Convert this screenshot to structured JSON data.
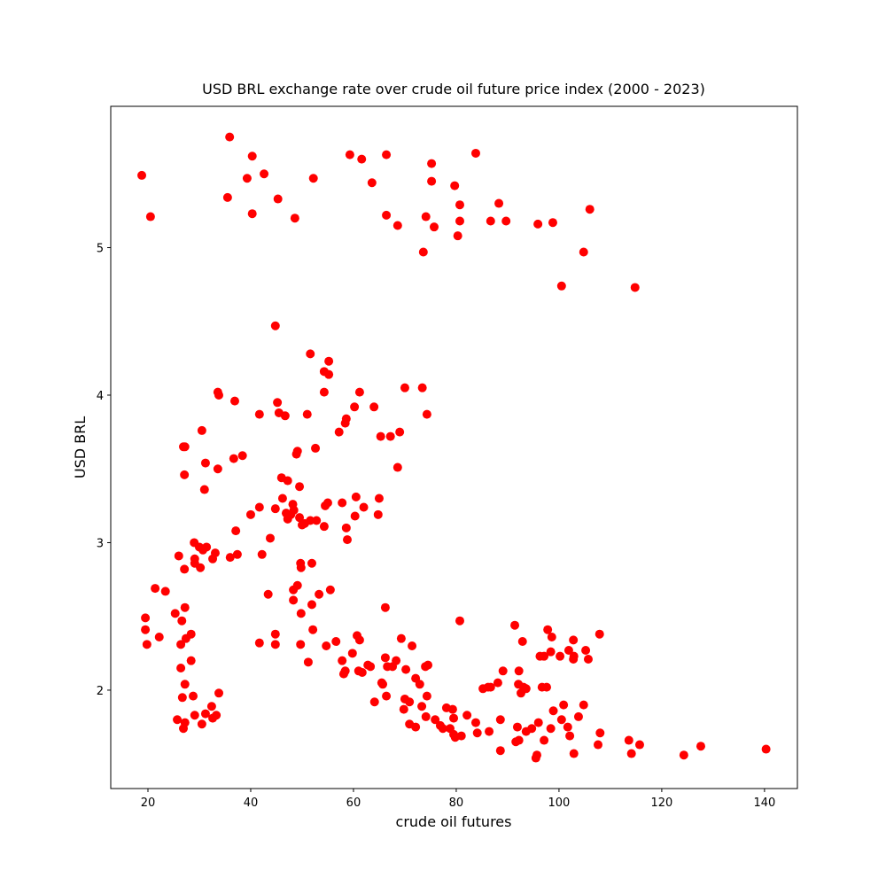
{
  "chart_data": {
    "type": "scatter",
    "title": "USD BRL exchange rate over crude oil future price index (2000 - 2023)",
    "x_label": "crude oil futures",
    "y_label": "USD BRL",
    "color": "#ff0000",
    "xlim": [
      12.76,
      146.4
    ],
    "ylim": [
      1.333,
      5.958
    ],
    "xticks": [
      20,
      40,
      60,
      80,
      100,
      120,
      140
    ],
    "yticks": [
      2,
      3,
      4,
      5
    ],
    "x": [
      18.8,
      20.5,
      35.9,
      35.5,
      40.3,
      39.3,
      42.6,
      40.3,
      45.3,
      48.6,
      52.2,
      59.3,
      61.6,
      63.6,
      66.4,
      66.4,
      68.6,
      75.2,
      75.2,
      74.1,
      75.7,
      73.6,
      79.7,
      80.7,
      80.7,
      80.3,
      83.8,
      86.7,
      88.3,
      89.7,
      95.9,
      98.8,
      106.0,
      104.8,
      100.5,
      114.8,
      44.8,
      51.6,
      55.2,
      54.3,
      55.2,
      54.3,
      33.6,
      33.8,
      36.9,
      41.7,
      45.2,
      45.5,
      46.7,
      51.0,
      58.6,
      58.4,
      60.2,
      61.2,
      64.0,
      70.0,
      73.4,
      74.3,
      57.2,
      65.3,
      67.2,
      69.0,
      68.6,
      30.5,
      26.9,
      27.2,
      31.2,
      33.6,
      36.7,
      38.4,
      27.1,
      31.0,
      49.1,
      48.9,
      52.6,
      46.0,
      47.2,
      49.5,
      46.2,
      60.5,
      65.0,
      54.5,
      55.0,
      57.8,
      62.0,
      41.7,
      44.8,
      40.0,
      48.2,
      48.4,
      46.9,
      47.8,
      47.2,
      49.5,
      51.6,
      52.8,
      50.5,
      50.0,
      60.3,
      64.8,
      54.3,
      58.6,
      37.1,
      58.8,
      43.8,
      29.0,
      30.0,
      31.4,
      30.7,
      33.1,
      32.6,
      29.1,
      29.1,
      30.2,
      26.0,
      27.1,
      36.0,
      37.4,
      42.2,
      49.7,
      49.8,
      51.9,
      21.4,
      23.4,
      43.4,
      49.1,
      48.3,
      53.3,
      55.5,
      48.3,
      51.9,
      66.2,
      27.2,
      25.3,
      49.8,
      19.5,
      26.6,
      80.7,
      19.5,
      52.1,
      91.4,
      97.8,
      107.9,
      22.2,
      28.4,
      44.8,
      60.7,
      27.4,
      61.2,
      56.6,
      69.3,
      98.6,
      102.8,
      92.9,
      19.8,
      26.4,
      41.7,
      44.8,
      49.7,
      54.7,
      71.4,
      101.9,
      105.2,
      98.4,
      96.3,
      97.1,
      100.2,
      102.9,
      102.8,
      105.7,
      66.2,
      68.3,
      28.4,
      57.8,
      59.8,
      51.2,
      66.6,
      67.6,
      74.5,
      74.0,
      62.8,
      63.3,
      61.0,
      61.7,
      58.4,
      58.1,
      26.4,
      70.2,
      89.1,
      92.2,
      72.1,
      27.2,
      65.5,
      65.7,
      72.9,
      92.1,
      93.1,
      96.7,
      97.6,
      86.2,
      86.7,
      85.2,
      93.6,
      92.6,
      88.1,
      33.8,
      66.4,
      28.8,
      26.7,
      74.3,
      70.0,
      70.9,
      64.1,
      69.8,
      104.8,
      100.9,
      32.4,
      73.3,
      78.1,
      79.3,
      98.9,
      31.2,
      33.3,
      29.1,
      32.6,
      25.7,
      82.1,
      74.1,
      75.9,
      103.8,
      79.5,
      100.5,
      88.6,
      96.0,
      27.2,
      83.8,
      70.9,
      76.9,
      77.4,
      72.1,
      30.5,
      26.9,
      78.8,
      86.4,
      91.9,
      101.7,
      98.4,
      93.6,
      94.7,
      84.1,
      108.0,
      79.5,
      79.8,
      81.0,
      102.1,
      97.1,
      92.2,
      91.6,
      113.6,
      115.7,
      107.6,
      88.6,
      102.9,
      114.1,
      95.7,
      95.5,
      124.3,
      127.6,
      140.3
    ],
    "values": [
      5.49,
      5.21,
      5.75,
      5.34,
      5.62,
      5.47,
      5.5,
      5.23,
      5.33,
      5.2,
      5.47,
      5.63,
      5.6,
      5.44,
      5.63,
      5.22,
      5.15,
      5.57,
      5.45,
      5.21,
      5.14,
      4.97,
      5.42,
      5.29,
      5.18,
      5.08,
      5.64,
      5.18,
      5.3,
      5.18,
      5.16,
      5.17,
      5.26,
      4.97,
      4.74,
      4.73,
      4.47,
      4.28,
      4.23,
      4.16,
      4.14,
      4.02,
      4.02,
      4.0,
      3.96,
      3.87,
      3.95,
      3.88,
      3.86,
      3.87,
      3.84,
      3.81,
      3.92,
      4.02,
      3.92,
      4.05,
      4.05,
      3.87,
      3.75,
      3.72,
      3.72,
      3.75,
      3.51,
      3.76,
      3.65,
      3.65,
      3.54,
      3.5,
      3.57,
      3.59,
      3.46,
      3.36,
      3.62,
      3.6,
      3.64,
      3.44,
      3.42,
      3.38,
      3.3,
      3.31,
      3.3,
      3.25,
      3.27,
      3.27,
      3.24,
      3.24,
      3.23,
      3.19,
      3.26,
      3.22,
      3.2,
      3.19,
      3.16,
      3.17,
      3.15,
      3.15,
      3.13,
      3.12,
      3.18,
      3.19,
      3.11,
      3.1,
      3.08,
      3.02,
      3.03,
      3.0,
      2.97,
      2.97,
      2.95,
      2.93,
      2.89,
      2.89,
      2.86,
      2.83,
      2.91,
      2.82,
      2.9,
      2.92,
      2.92,
      2.86,
      2.83,
      2.86,
      2.69,
      2.67,
      2.65,
      2.71,
      2.68,
      2.65,
      2.68,
      2.61,
      2.58,
      2.56,
      2.56,
      2.52,
      2.52,
      2.49,
      2.47,
      2.47,
      2.41,
      2.41,
      2.44,
      2.41,
      2.38,
      2.36,
      2.38,
      2.38,
      2.37,
      2.35,
      2.34,
      2.33,
      2.35,
      2.36,
      2.34,
      2.33,
      2.31,
      2.31,
      2.32,
      2.31,
      2.31,
      2.3,
      2.3,
      2.27,
      2.27,
      2.26,
      2.23,
      2.23,
      2.23,
      2.23,
      2.21,
      2.21,
      2.22,
      2.2,
      2.2,
      2.2,
      2.25,
      2.19,
      2.16,
      2.16,
      2.17,
      2.16,
      2.17,
      2.16,
      2.13,
      2.12,
      2.13,
      2.11,
      2.15,
      2.14,
      2.13,
      2.13,
      2.08,
      2.04,
      2.05,
      2.04,
      2.04,
      2.04,
      2.02,
      2.02,
      2.02,
      2.02,
      2.02,
      2.01,
      2.01,
      1.98,
      2.05,
      1.98,
      1.96,
      1.96,
      1.95,
      1.96,
      1.94,
      1.92,
      1.92,
      1.87,
      1.9,
      1.9,
      1.89,
      1.89,
      1.88,
      1.87,
      1.86,
      1.84,
      1.83,
      1.83,
      1.81,
      1.8,
      1.83,
      1.82,
      1.8,
      1.82,
      1.81,
      1.8,
      1.8,
      1.78,
      1.78,
      1.78,
      1.77,
      1.76,
      1.74,
      1.75,
      1.77,
      1.74,
      1.74,
      1.72,
      1.75,
      1.75,
      1.74,
      1.72,
      1.74,
      1.71,
      1.71,
      1.7,
      1.68,
      1.69,
      1.69,
      1.66,
      1.66,
      1.65,
      1.66,
      1.63,
      1.63,
      1.59,
      1.57,
      1.57,
      1.56,
      1.54,
      1.56,
      1.62,
      1.6
    ]
  }
}
